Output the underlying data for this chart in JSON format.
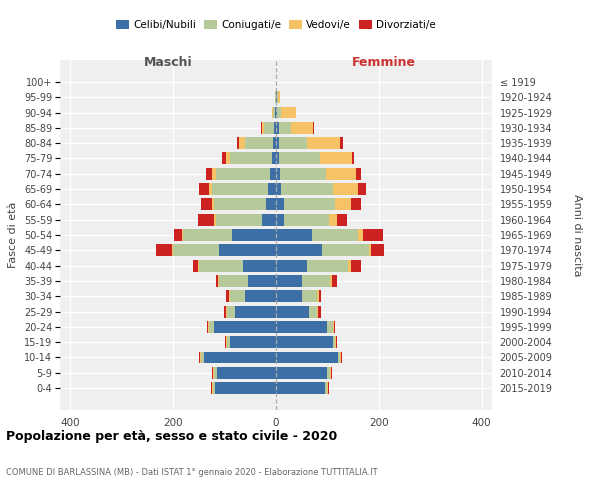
{
  "age_groups": [
    "100+",
    "95-99",
    "90-94",
    "85-89",
    "80-84",
    "75-79",
    "70-74",
    "65-69",
    "60-64",
    "55-59",
    "50-54",
    "45-49",
    "40-44",
    "35-39",
    "30-34",
    "25-29",
    "20-24",
    "15-19",
    "10-14",
    "5-9",
    "0-4"
  ],
  "birth_years": [
    "≤ 1919",
    "1920-1924",
    "1925-1929",
    "1930-1934",
    "1935-1939",
    "1940-1944",
    "1945-1949",
    "1950-1954",
    "1955-1959",
    "1960-1964",
    "1965-1969",
    "1970-1974",
    "1975-1979",
    "1980-1984",
    "1985-1989",
    "1990-1994",
    "1995-1999",
    "2000-2004",
    "2005-2009",
    "2010-2014",
    "2015-2019"
  ],
  "maschi_celibi": [
    0,
    0,
    1,
    3,
    6,
    7,
    12,
    15,
    20,
    28,
    85,
    110,
    65,
    55,
    60,
    80,
    120,
    90,
    140,
    115,
    118
  ],
  "maschi_coniugati": [
    0,
    2,
    5,
    20,
    55,
    82,
    105,
    110,
    100,
    88,
    95,
    90,
    85,
    55,
    30,
    15,
    10,
    5,
    5,
    5,
    5
  ],
  "maschi_vedovi": [
    0,
    0,
    2,
    5,
    10,
    8,
    8,
    5,
    5,
    5,
    3,
    3,
    2,
    2,
    2,
    2,
    2,
    2,
    2,
    2,
    2
  ],
  "maschi_divorziati": [
    0,
    0,
    0,
    2,
    5,
    8,
    12,
    20,
    20,
    30,
    15,
    30,
    10,
    5,
    5,
    5,
    3,
    2,
    2,
    2,
    2
  ],
  "femmine_nubili": [
    0,
    2,
    2,
    5,
    5,
    5,
    8,
    10,
    15,
    15,
    70,
    90,
    60,
    50,
    50,
    65,
    100,
    110,
    120,
    100,
    95
  ],
  "femmine_coniugate": [
    0,
    2,
    8,
    25,
    55,
    80,
    90,
    100,
    100,
    88,
    90,
    90,
    80,
    55,
    30,
    15,
    10,
    5,
    5,
    5,
    5
  ],
  "femmine_vedove": [
    0,
    3,
    28,
    42,
    65,
    62,
    58,
    50,
    30,
    15,
    10,
    5,
    5,
    3,
    3,
    2,
    2,
    2,
    2,
    2,
    2
  ],
  "femmine_divorziate": [
    0,
    0,
    0,
    2,
    5,
    5,
    10,
    15,
    20,
    20,
    38,
    25,
    20,
    10,
    5,
    5,
    3,
    2,
    2,
    2,
    2
  ],
  "colors": {
    "celibi_nubili": "#3c6fa5",
    "coniugati": "#b5c99a",
    "vedovi": "#f5c265",
    "divorziati": "#cc2222"
  },
  "xlim_left": -420,
  "xlim_right": 420,
  "xticks": [
    -400,
    -200,
    0,
    200,
    400
  ],
  "xticklabels": [
    "400",
    "200",
    "0",
    "200",
    "400"
  ],
  "title": "Popolazione per età, sesso e stato civile - 2020",
  "subtitle": "COMUNE DI BARLASSINA (MB) - Dati ISTAT 1° gennaio 2020 - Elaborazione TUTTITALIA.IT",
  "ylabel_left": "Fasce di età",
  "ylabel_right": "Anni di nascita",
  "maschi_label": "Maschi",
  "femmine_label": "Femmine",
  "legend_labels": [
    "Celibi/Nubili",
    "Coniugati/e",
    "Vedovi/e",
    "Divorziati/e"
  ],
  "bg_color": "#efefef",
  "bar_height": 0.78
}
